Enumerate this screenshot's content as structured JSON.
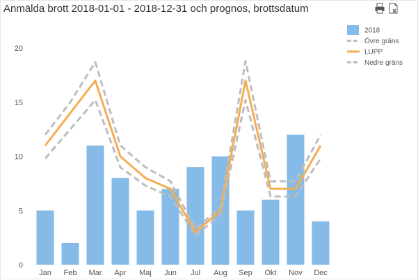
{
  "title": "Anmälda brott 2018-01-01 - 2018-12-31 och prognos, brottsdatum",
  "toolbar": {
    "icons": [
      "print-icon",
      "export-excel-icon"
    ]
  },
  "chart_data": {
    "type": "bar",
    "title": "Anmälda brott 2018-01-01 - 2018-12-31 och prognos, brottsdatum",
    "xlabel": "",
    "ylabel": "",
    "categories": [
      "Jan",
      "Feb",
      "Mar",
      "Apr",
      "Maj",
      "Jun",
      "Jul",
      "Aug",
      "Sep",
      "Okt",
      "Nov",
      "Dec"
    ],
    "ylim": [
      0,
      20
    ],
    "yticks": [
      0,
      5,
      10,
      15,
      20
    ],
    "grid": false,
    "legend_position": "top-right",
    "series": [
      {
        "name": "2018",
        "kind": "bar",
        "color": "#85bbe6",
        "values": [
          5,
          2,
          11,
          8,
          5,
          7,
          9,
          10,
          5,
          6,
          12,
          4
        ]
      },
      {
        "name": "Övre gräns",
        "kind": "line",
        "style": "dashed",
        "color": "#bdbdbd",
        "values": [
          12,
          15,
          18.7,
          11,
          9,
          7.7,
          3.3,
          5.3,
          18.8,
          7.7,
          7.7,
          12
        ]
      },
      {
        "name": "LUPP",
        "kind": "line",
        "style": "solid",
        "color": "#f5ad52",
        "values": [
          11,
          14,
          17,
          10,
          8,
          7,
          3,
          5,
          17,
          7,
          7,
          11
        ]
      },
      {
        "name": "Nedre gräns",
        "kind": "line",
        "style": "dashed",
        "color": "#bdbdbd",
        "values": [
          9.8,
          12.5,
          15.2,
          9,
          7.3,
          6.3,
          2.7,
          4.6,
          15.2,
          6.3,
          6.3,
          9.8
        ]
      }
    ]
  }
}
